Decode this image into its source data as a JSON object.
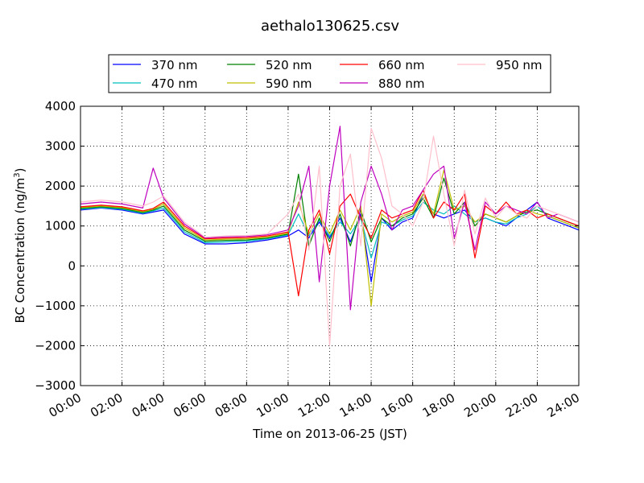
{
  "chart_data": {
    "type": "line",
    "title": "aethalo130625.csv",
    "xlabel": "Time on 2013-06-25 (JST)",
    "ylabel_main": "BC Concentration (ng/m",
    "ylabel_sup": "3",
    "ylabel_close": ")",
    "xlim": [
      "00:00",
      "24:00"
    ],
    "ylim": [
      -3000,
      4000
    ],
    "grid": true,
    "legend_placement": "top-center, above plot, 4 columns",
    "x_ticks": [
      "00:00",
      "02:00",
      "04:00",
      "06:00",
      "08:00",
      "10:00",
      "12:00",
      "14:00",
      "16:00",
      "18:00",
      "20:00",
      "22:00",
      "24:00"
    ],
    "y_ticks": [
      4000,
      3000,
      2000,
      1000,
      0,
      -1000,
      -2000,
      -3000
    ],
    "y_tick_labels": [
      "4000",
      "3000",
      "2000",
      "1000",
      "0",
      "−1000",
      "−2000",
      "−3000"
    ],
    "x": [
      "00:00",
      "01:00",
      "02:00",
      "03:00",
      "03:30",
      "04:00",
      "05:00",
      "06:00",
      "07:00",
      "08:00",
      "09:00",
      "10:00",
      "10:30",
      "11:00",
      "11:30",
      "12:00",
      "12:30",
      "13:00",
      "13:30",
      "14:00",
      "14:30",
      "15:00",
      "15:30",
      "16:00",
      "16:30",
      "17:00",
      "17:30",
      "18:00",
      "18:30",
      "19:00",
      "19:30",
      "20:00",
      "20:30",
      "21:00",
      "21:30",
      "22:00",
      "22:30",
      "23:00",
      "23:30",
      "24:00"
    ],
    "series": [
      {
        "name": "370 nm",
        "color": "#0000ff",
        "values": [
          1400,
          1450,
          1400,
          1300,
          1350,
          1400,
          800,
          550,
          550,
          580,
          650,
          750,
          900,
          700,
          1100,
          700,
          1200,
          600,
          1300,
          -400,
          1200,
          900,
          1100,
          1200,
          1800,
          1300,
          1200,
          1300,
          1400,
          1100,
          1200,
          1100,
          1000,
          1200,
          1400,
          1600,
          1200,
          1100,
          1000,
          900
        ]
      },
      {
        "name": "470 nm",
        "color": "#00bfbf",
        "values": [
          1420,
          1460,
          1420,
          1320,
          1380,
          1450,
          850,
          580,
          600,
          620,
          680,
          780,
          1300,
          750,
          1150,
          750,
          1100,
          800,
          1200,
          200,
          1100,
          1000,
          1150,
          1250,
          1600,
          1400,
          1300,
          1500,
          1300,
          1100,
          1200,
          1100,
          1050,
          1200,
          1300,
          1500,
          1250,
          1150,
          1050,
          950
        ]
      },
      {
        "name": "520 nm",
        "color": "#008000",
        "values": [
          1440,
          1480,
          1440,
          1340,
          1400,
          1500,
          900,
          620,
          640,
          650,
          700,
          800,
          2300,
          500,
          1200,
          600,
          1300,
          500,
          1400,
          600,
          1200,
          1000,
          1200,
          1300,
          1700,
          1200,
          2200,
          1300,
          1600,
          1000,
          1300,
          1200,
          1100,
          1250,
          1350,
          1400,
          1300,
          1200,
          1100,
          1000
        ]
      },
      {
        "name": "590 nm",
        "color": "#bfbf00",
        "values": [
          1460,
          1500,
          1460,
          1360,
          1420,
          1550,
          950,
          650,
          670,
          680,
          720,
          820,
          1600,
          800,
          1300,
          800,
          1400,
          900,
          1500,
          -1000,
          1300,
          1100,
          1250,
          1350,
          1800,
          1300,
          2400,
          1400,
          1500,
          1100,
          1300,
          1200,
          1100,
          1250,
          1400,
          1300,
          1250,
          1150,
          1050,
          950
        ]
      },
      {
        "name": "660 nm",
        "color": "#ff0000",
        "values": [
          1480,
          1520,
          1480,
          1380,
          1440,
          1600,
          1000,
          680,
          700,
          710,
          750,
          850,
          -750,
          900,
          1400,
          300,
          1500,
          1800,
          1200,
          700,
          1400,
          1200,
          1300,
          1400,
          1900,
          1200,
          1600,
          1400,
          1800,
          200,
          1500,
          1300,
          1600,
          1300,
          1400,
          1200,
          1300,
          1200,
          1100,
          1000
        ]
      },
      {
        "name": "880 nm",
        "color": "#bf00bf",
        "values": [
          1550,
          1600,
          1550,
          1450,
          2450,
          1700,
          1050,
          700,
          730,
          740,
          780,
          900,
          1500,
          2500,
          -400,
          2000,
          3500,
          -1100,
          1600,
          2500,
          1800,
          900,
          1400,
          1500,
          1900,
          2300,
          2500,
          700,
          1600,
          400,
          1600,
          1300,
          1500,
          1400,
          1300,
          1600,
          1200,
          1300,
          1200,
          1100
        ]
      },
      {
        "name": "950 nm",
        "color": "#ffc0cb",
        "values": [
          1600,
          1650,
          1600,
          1500,
          1600,
          1750,
          1100,
          720,
          750,
          760,
          800,
          1300,
          1800,
          400,
          2500,
          -2000,
          2000,
          2800,
          500,
          3450,
          2700,
          1500,
          1300,
          1000,
          1600,
          3250,
          1800,
          500,
          1900,
          800,
          1700,
          1200,
          1500,
          1300,
          1200,
          1500,
          1400,
          1300,
          1200,
          1100
        ]
      }
    ]
  }
}
